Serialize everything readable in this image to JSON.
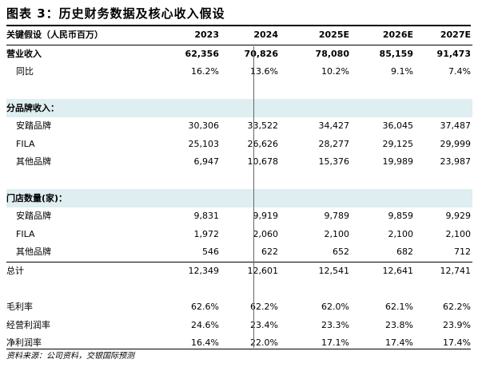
{
  "title": "图表 3：历史财务数据及核心收入假设",
  "header": [
    "关键假设（人民币百万）",
    "2023",
    "2024",
    "2025E",
    "2026E",
    "2027E"
  ],
  "rows": [
    {
      "type": "bold",
      "cells": [
        "营业收入",
        "62,356",
        "70,826",
        "78,080",
        "85,159",
        "91,473"
      ]
    },
    {
      "type": "indent",
      "cells": [
        "同比",
        "16.2%",
        "13.6%",
        "10.2%",
        "9.1%",
        "7.4%"
      ]
    },
    {
      "type": "blank",
      "cells": [
        "",
        "",
        "",
        "",
        "",
        ""
      ]
    },
    {
      "type": "section",
      "cells": [
        "分品牌收入：",
        "",
        "",
        "",
        "",
        ""
      ]
    },
    {
      "type": "indent",
      "cells": [
        "安踏品牌",
        "30,306",
        "33,522",
        "34,427",
        "36,045",
        "37,487"
      ]
    },
    {
      "type": "indent",
      "cells": [
        "FILA",
        "25,103",
        "26,626",
        "28,277",
        "29,125",
        "29,999"
      ]
    },
    {
      "type": "indent",
      "cells": [
        "其他品牌",
        "6,947",
        "10,678",
        "15,376",
        "19,989",
        "23,987"
      ]
    },
    {
      "type": "blank",
      "cells": [
        "",
        "",
        "",
        "",
        "",
        ""
      ]
    },
    {
      "type": "section",
      "cells": [
        "门店数量(家)：",
        "",
        "",
        "",
        "",
        ""
      ]
    },
    {
      "type": "indent",
      "cells": [
        "安踏品牌",
        "9,831",
        "9,919",
        "9,789",
        "9,859",
        "9,929"
      ]
    },
    {
      "type": "indent",
      "cells": [
        "FILA",
        "1,972",
        "2,060",
        "2,100",
        "2,100",
        "2,100"
      ]
    },
    {
      "type": "indent",
      "cells": [
        "其他品牌",
        "546",
        "622",
        "652",
        "682",
        "712"
      ]
    },
    {
      "type": "boldtop",
      "cells": [
        "总计",
        "12,349",
        "12,601",
        "12,541",
        "12,641",
        "12,741"
      ]
    },
    {
      "type": "blank",
      "cells": [
        "",
        "",
        "",
        "",
        "",
        ""
      ]
    },
    {
      "type": "plain",
      "cells": [
        "毛利率",
        "62.6%",
        "62.2%",
        "62.0%",
        "62.1%",
        "62.2%"
      ]
    },
    {
      "type": "plain",
      "cells": [
        "经营利润率",
        "24.6%",
        "23.4%",
        "23.3%",
        "23.8%",
        "23.9%"
      ]
    },
    {
      "type": "plain",
      "cells": [
        "净利润率",
        "16.4%",
        "22.0%",
        "17.1%",
        "17.4%",
        "17.4%"
      ]
    }
  ],
  "footnote": "资料来源：公司资料，交银国际预测"
}
